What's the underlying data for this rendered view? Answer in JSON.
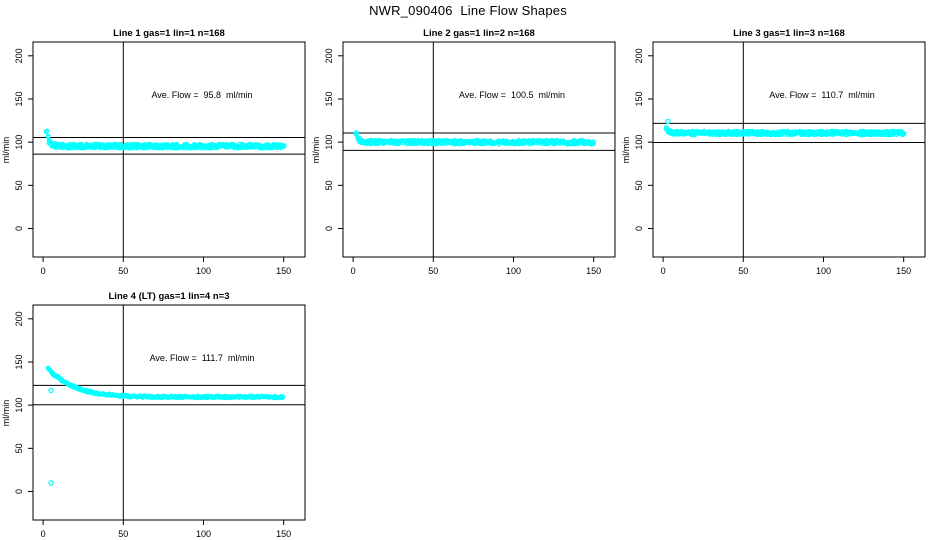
{
  "main_title": "NWR_090406  Line Flow Shapes",
  "colors": {
    "points": "#00FFFF",
    "axis": "#000000",
    "background": "#FFFFFF"
  },
  "chart_data": {
    "type": "scatter",
    "grid": "off",
    "xlim": [
      -6.3,
      163.3
    ],
    "ylim": [
      -33,
      216
    ],
    "x_ticks": [
      0,
      50,
      100,
      150
    ],
    "y_ticks": [
      0,
      50,
      100,
      150,
      200
    ],
    "vline_x": 50,
    "panels": [
      {
        "title": "Line 1 gas=1 lin=1 n=168",
        "ylabel": "ml/min",
        "ave_flow": 95.8,
        "ave_flow_label": "Ave. Flow =  95.8  ml/min",
        "ref_lines": [
          105.4,
          86.2
        ],
        "x_start": 2,
        "x_end": 150,
        "band_halfwidth": 2.5,
        "points_per_step": 3,
        "trend": [
          [
            2,
            113
          ],
          [
            3,
            105
          ],
          [
            4,
            100
          ],
          [
            5,
            97.5
          ],
          [
            6,
            96.5
          ],
          [
            8,
            95.8
          ],
          [
            12,
            95.5
          ],
          [
            20,
            95.4
          ],
          [
            35,
            95.5
          ],
          [
            50,
            95.3
          ],
          [
            70,
            95.4
          ],
          [
            90,
            95.2
          ],
          [
            110,
            95.4
          ],
          [
            130,
            95.3
          ],
          [
            150,
            95.3
          ]
        ],
        "extra_points": []
      },
      {
        "title": "Line 2 gas=1 lin=2 n=168",
        "ylabel": "ml/min",
        "ave_flow": 100.5,
        "ave_flow_label": "Ave. Flow =  100.5  ml/min",
        "ref_lines": [
          110.6,
          90.5
        ],
        "x_start": 2,
        "x_end": 150,
        "band_halfwidth": 2.3,
        "points_per_step": 3,
        "trend": [
          [
            2,
            110
          ],
          [
            3,
            104.5
          ],
          [
            4,
            102
          ],
          [
            5,
            101
          ],
          [
            7,
            100.4
          ],
          [
            10,
            100.1
          ],
          [
            20,
            100
          ],
          [
            40,
            100.1
          ],
          [
            60,
            99.9
          ],
          [
            85,
            100
          ],
          [
            110,
            99.9
          ],
          [
            130,
            100
          ],
          [
            150,
            99.8
          ]
        ],
        "extra_points": []
      },
      {
        "title": "Line 3 gas=1 lin=3 n=168",
        "ylabel": "ml/min",
        "ave_flow": 110.7,
        "ave_flow_label": "Ave. Flow =  110.7  ml/min",
        "ref_lines": [
          121.8,
          99.6
        ],
        "x_start": 2,
        "x_end": 150,
        "band_halfwidth": 2.3,
        "points_per_step": 3,
        "trend": [
          [
            2,
            116.5
          ],
          [
            3,
            113.5
          ],
          [
            4,
            112
          ],
          [
            6,
            111.2
          ],
          [
            9,
            110.8
          ],
          [
            15,
            110.7
          ],
          [
            30,
            110.6
          ],
          [
            50,
            110.7
          ],
          [
            75,
            110.5
          ],
          [
            100,
            110.6
          ],
          [
            125,
            110.5
          ],
          [
            150,
            110.5
          ]
        ],
        "extra_points": [
          [
            3,
            124
          ]
        ]
      },
      {
        "title": "Line 4 (LT) gas=1 lin=4 n=3",
        "ylabel": "ml/min",
        "ave_flow": 111.7,
        "ave_flow_label": "Ave. Flow =  111.7  ml/min",
        "ref_lines": [
          122.9,
          100.5
        ],
        "x_start": 3,
        "x_end": 150,
        "band_halfwidth": 1.2,
        "points_per_step": 2,
        "trend": [
          [
            3,
            142
          ],
          [
            4,
            140.5
          ],
          [
            5,
            139
          ],
          [
            6,
            137.3
          ],
          [
            7,
            135.6
          ],
          [
            8,
            133.9
          ],
          [
            10,
            131
          ],
          [
            12,
            128.4
          ],
          [
            14,
            126
          ],
          [
            16,
            124
          ],
          [
            18,
            122.2
          ],
          [
            20,
            120.6
          ],
          [
            23,
            118.6
          ],
          [
            26,
            117
          ],
          [
            30,
            115.2
          ],
          [
            34,
            113.8
          ],
          [
            38,
            112.7
          ],
          [
            42,
            111.9
          ],
          [
            46,
            111.2
          ],
          [
            50,
            110.7
          ],
          [
            55,
            110.3
          ],
          [
            60,
            110
          ],
          [
            70,
            109.7
          ],
          [
            80,
            109.6
          ],
          [
            90,
            109.5
          ],
          [
            100,
            109.6
          ],
          [
            115,
            109.5
          ],
          [
            130,
            109.7
          ],
          [
            150,
            109.4
          ]
        ],
        "extra_points": [
          [
            5,
            117
          ],
          [
            5,
            10
          ]
        ]
      }
    ]
  }
}
